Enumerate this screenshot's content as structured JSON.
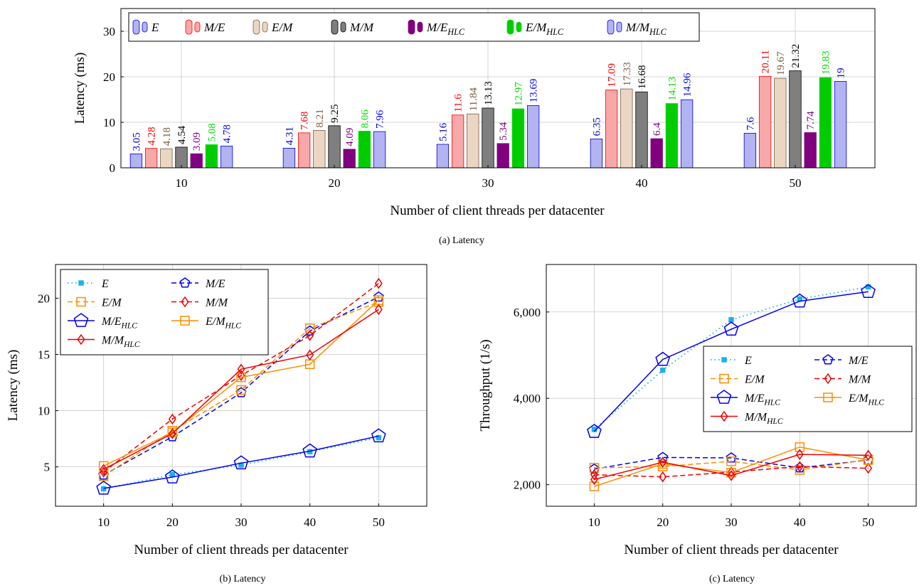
{
  "colors": {
    "E": "#2a9fd6",
    "E_fill": "#b3b3f2",
    "E_stroke": "#0000cc",
    "M_E": "#ff0000",
    "M_E_fill": "#f7a8a8",
    "E_M": "#7a5c3c",
    "E_M_fill": "#ead6c2",
    "M_M": "#000000",
    "M_M_fill": "#7f7f7f",
    "M_EHLC": "#800080",
    "M_EHLC_fill": "#800080",
    "E_MHLC": "#00e000",
    "E_MHLC_fill": "#00cc00",
    "M_MHLC": "#0000ff",
    "M_MHLC_fill": "#b3b3f2",
    "line_blue": "#0000ee",
    "line_orange": "#ff8c00",
    "line_red": "#ee0000",
    "line_cyan": "#1ab2e8"
  },
  "captions": {
    "a": "(a) Latency",
    "b": "(b) Latency",
    "c": "(c) Latency"
  },
  "chart_data": [
    {
      "id": "a",
      "type": "bar",
      "xlabel": "Number of client threads per datacenter",
      "ylabel": "Latency (ms)",
      "ylim": [
        0,
        35
      ],
      "yticks": [
        0,
        10,
        20,
        30
      ],
      "categories": [
        "10",
        "20",
        "30",
        "40",
        "50"
      ],
      "grid": true,
      "legend": "top",
      "series": [
        {
          "name": "E",
          "key": "E",
          "values": [
            3.05,
            4.31,
            5.16,
            6.35,
            7.6
          ],
          "labels": [
            "3.05",
            "4.31",
            "5.16",
            "6.35",
            "7.6"
          ]
        },
        {
          "name": "M/E",
          "key": "M_E",
          "values": [
            4.28,
            7.68,
            11.6,
            17.09,
            20.11
          ],
          "labels": [
            "4.28",
            "7.68",
            "11.6",
            "17.09",
            "20.11"
          ]
        },
        {
          "name": "E/M",
          "key": "E_M",
          "values": [
            4.18,
            8.21,
            11.84,
            17.33,
            19.67
          ],
          "labels": [
            "4.18",
            "8.21",
            "11.84",
            "17.33",
            "19.67"
          ]
        },
        {
          "name": "M/M",
          "key": "M_M",
          "values": [
            4.54,
            9.25,
            13.13,
            16.68,
            21.32
          ],
          "labels": [
            "4.54",
            "9.25",
            "13.13",
            "16.68",
            "21.32"
          ]
        },
        {
          "name": "M/E",
          "sub": "HLC",
          "key": "M_EHLC",
          "values": [
            3.09,
            4.09,
            5.34,
            6.4,
            7.74
          ],
          "labels": [
            "3.09",
            "4.09",
            "5.34",
            "6.4",
            "7.74"
          ]
        },
        {
          "name": "E/M",
          "sub": "HLC",
          "key": "E_MHLC",
          "values": [
            5.08,
            8.06,
            12.97,
            14.13,
            19.83
          ],
          "labels": [
            "5.08",
            "8.06",
            "12.97",
            "14.13",
            "19.83"
          ]
        },
        {
          "name": "M/M",
          "sub": "HLC",
          "key": "M_MHLC",
          "values": [
            4.78,
            7.96,
            13.69,
            14.96,
            19
          ],
          "labels": [
            "4.78",
            "7.96",
            "13.69",
            "14.96",
            "19"
          ]
        }
      ]
    },
    {
      "id": "b",
      "type": "line",
      "xlabel": "Number of client threads per datacenter",
      "ylabel": "Latency (ms)",
      "x": [
        10,
        20,
        30,
        40,
        50
      ],
      "xlim": [
        3,
        57
      ],
      "ylim": [
        1.5,
        23
      ],
      "yticks": [
        5,
        10,
        15,
        20
      ],
      "grid": true,
      "legend": "top-left",
      "series": [
        {
          "name": "E",
          "style": "dotted",
          "color": "line_cyan",
          "marker": "square-small",
          "values": [
            3.05,
            4.31,
            5.16,
            6.35,
            7.6
          ]
        },
        {
          "name": "M/E",
          "style": "dashed",
          "color": "line_blue",
          "marker": "pentagon",
          "values": [
            4.28,
            7.68,
            11.6,
            17.09,
            20.11
          ]
        },
        {
          "name": "E/M",
          "style": "dashed",
          "color": "line_orange",
          "marker": "square",
          "values": [
            4.18,
            8.21,
            11.84,
            17.33,
            19.67
          ]
        },
        {
          "name": "M/M",
          "style": "dashed",
          "color": "line_red",
          "marker": "diamond",
          "values": [
            4.54,
            9.25,
            13.13,
            16.68,
            21.32
          ]
        },
        {
          "name": "M/E",
          "sub": "HLC",
          "style": "solid",
          "color": "line_blue",
          "marker": "pentagon-big",
          "values": [
            3.09,
            4.09,
            5.34,
            6.4,
            7.74
          ]
        },
        {
          "name": "E/M",
          "sub": "HLC",
          "style": "solid",
          "color": "line_orange",
          "marker": "square",
          "values": [
            5.08,
            8.06,
            12.97,
            14.13,
            19.83
          ]
        },
        {
          "name": "M/M",
          "sub": "HLC",
          "style": "solid",
          "color": "line_red",
          "marker": "diamond",
          "values": [
            4.78,
            7.96,
            13.69,
            14.96,
            19
          ]
        }
      ]
    },
    {
      "id": "c",
      "type": "line",
      "xlabel": "Number of client threads per datacenter",
      "ylabel": "Throughput (1/s)",
      "x": [
        10,
        20,
        30,
        40,
        50
      ],
      "xlim": [
        3,
        57
      ],
      "ylim": [
        1500,
        7100
      ],
      "yticks": [
        2000,
        4000,
        6000
      ],
      "ytick_labels": [
        "2,000",
        "4,000",
        "6,000"
      ],
      "grid": true,
      "legend": "right",
      "series": [
        {
          "name": "E",
          "style": "dotted",
          "color": "line_cyan",
          "marker": "square-small",
          "values": [
            3280,
            4650,
            5820,
            6300,
            6580
          ]
        },
        {
          "name": "M/E",
          "style": "dashed",
          "color": "line_blue",
          "marker": "pentagon",
          "values": [
            2360,
            2630,
            2620,
            2390,
            2570
          ]
        },
        {
          "name": "E/M",
          "style": "dashed",
          "color": "line_orange",
          "marker": "square",
          "values": [
            2390,
            2420,
            2540,
            2340,
            2580
          ]
        },
        {
          "name": "M/M",
          "style": "dashed",
          "color": "line_red",
          "marker": "diamond",
          "values": [
            2230,
            2180,
            2290,
            2420,
            2380
          ]
        },
        {
          "name": "M/E",
          "sub": "HLC",
          "style": "solid",
          "color": "line_blue",
          "marker": "pentagon-big",
          "values": [
            3230,
            4900,
            5600,
            6250,
            6470
          ]
        },
        {
          "name": "E/M",
          "sub": "HLC",
          "style": "solid",
          "color": "line_orange",
          "marker": "square",
          "values": [
            1960,
            2480,
            2280,
            2870,
            2570
          ]
        },
        {
          "name": "M/M",
          "sub": "HLC",
          "style": "solid",
          "color": "line_red",
          "marker": "diamond",
          "values": [
            2120,
            2520,
            2210,
            2700,
            2680
          ]
        }
      ]
    }
  ]
}
